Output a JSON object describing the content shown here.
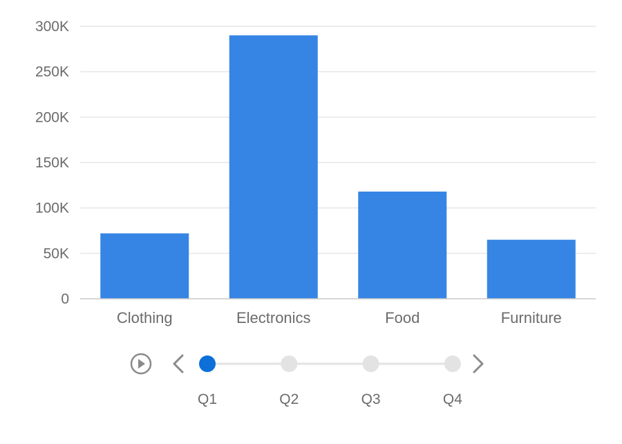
{
  "chart_data": {
    "type": "bar",
    "categories": [
      "Clothing",
      "Electronics",
      "Food",
      "Furniture"
    ],
    "values": [
      72000,
      290000,
      118000,
      65000
    ],
    "ylim": [
      0,
      300000
    ],
    "yticks": [
      0,
      50000,
      100000,
      150000,
      200000,
      250000,
      300000
    ],
    "ytick_labels": [
      "0",
      "50K",
      "100K",
      "150K",
      "200K",
      "250K",
      "300K"
    ],
    "grid": true,
    "bar_color": "#3685e4"
  },
  "timeline": {
    "steps": [
      "Q1",
      "Q2",
      "Q3",
      "Q4"
    ],
    "active_index": 0,
    "active_color": "#0d6fd8",
    "inactive_color": "#e3e3e3",
    "play_icon": "play-circle-icon",
    "prev_icon": "chevron-left-icon",
    "next_icon": "chevron-right-icon"
  }
}
